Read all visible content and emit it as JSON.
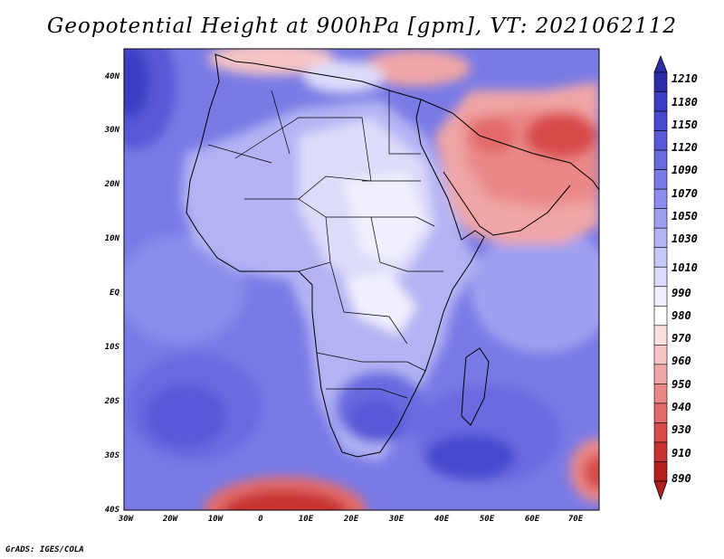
{
  "title": "Geopotential Height at 900hPa [gpm], VT: 2021062112",
  "credit": "GrADS: IGES/COLA",
  "map": {
    "region": "Africa",
    "variable": "geopotential height",
    "level_hpa": 900,
    "units": "gpm",
    "valid_time": "2021062112",
    "lon_labels": [
      "30W",
      "20W",
      "10W",
      "0",
      "10E",
      "20E",
      "30E",
      "40E",
      "50E",
      "60E",
      "70E"
    ],
    "lat_labels": [
      "40N",
      "30N",
      "20N",
      "10N",
      "EQ",
      "10S",
      "20S",
      "30S",
      "40S"
    ]
  },
  "colorbar": {
    "labels": [
      "1210",
      "1180",
      "1150",
      "1120",
      "1090",
      "1070",
      "1050",
      "1030",
      "1010",
      "990",
      "980",
      "970",
      "960",
      "950",
      "940",
      "930",
      "910",
      "890"
    ],
    "colors": [
      "#2c2ca8",
      "#3c3cc4",
      "#4848d0",
      "#5858d8",
      "#6a6ae0",
      "#7a7ae6",
      "#8c8cec",
      "#a0a0f0",
      "#b4b4f4",
      "#c8c8f8",
      "#dcdcfa",
      "#f0f0fd",
      "#ffffff",
      "#fbe0e0",
      "#f6c4c4",
      "#f0a6a6",
      "#ea8888",
      "#e26a6a",
      "#d84c4c",
      "#c83232",
      "#b41e1e"
    ]
  },
  "legend_colors": {
    "high": "#2c2ca8",
    "neutral": "#ffffff",
    "low": "#b41e1e"
  }
}
